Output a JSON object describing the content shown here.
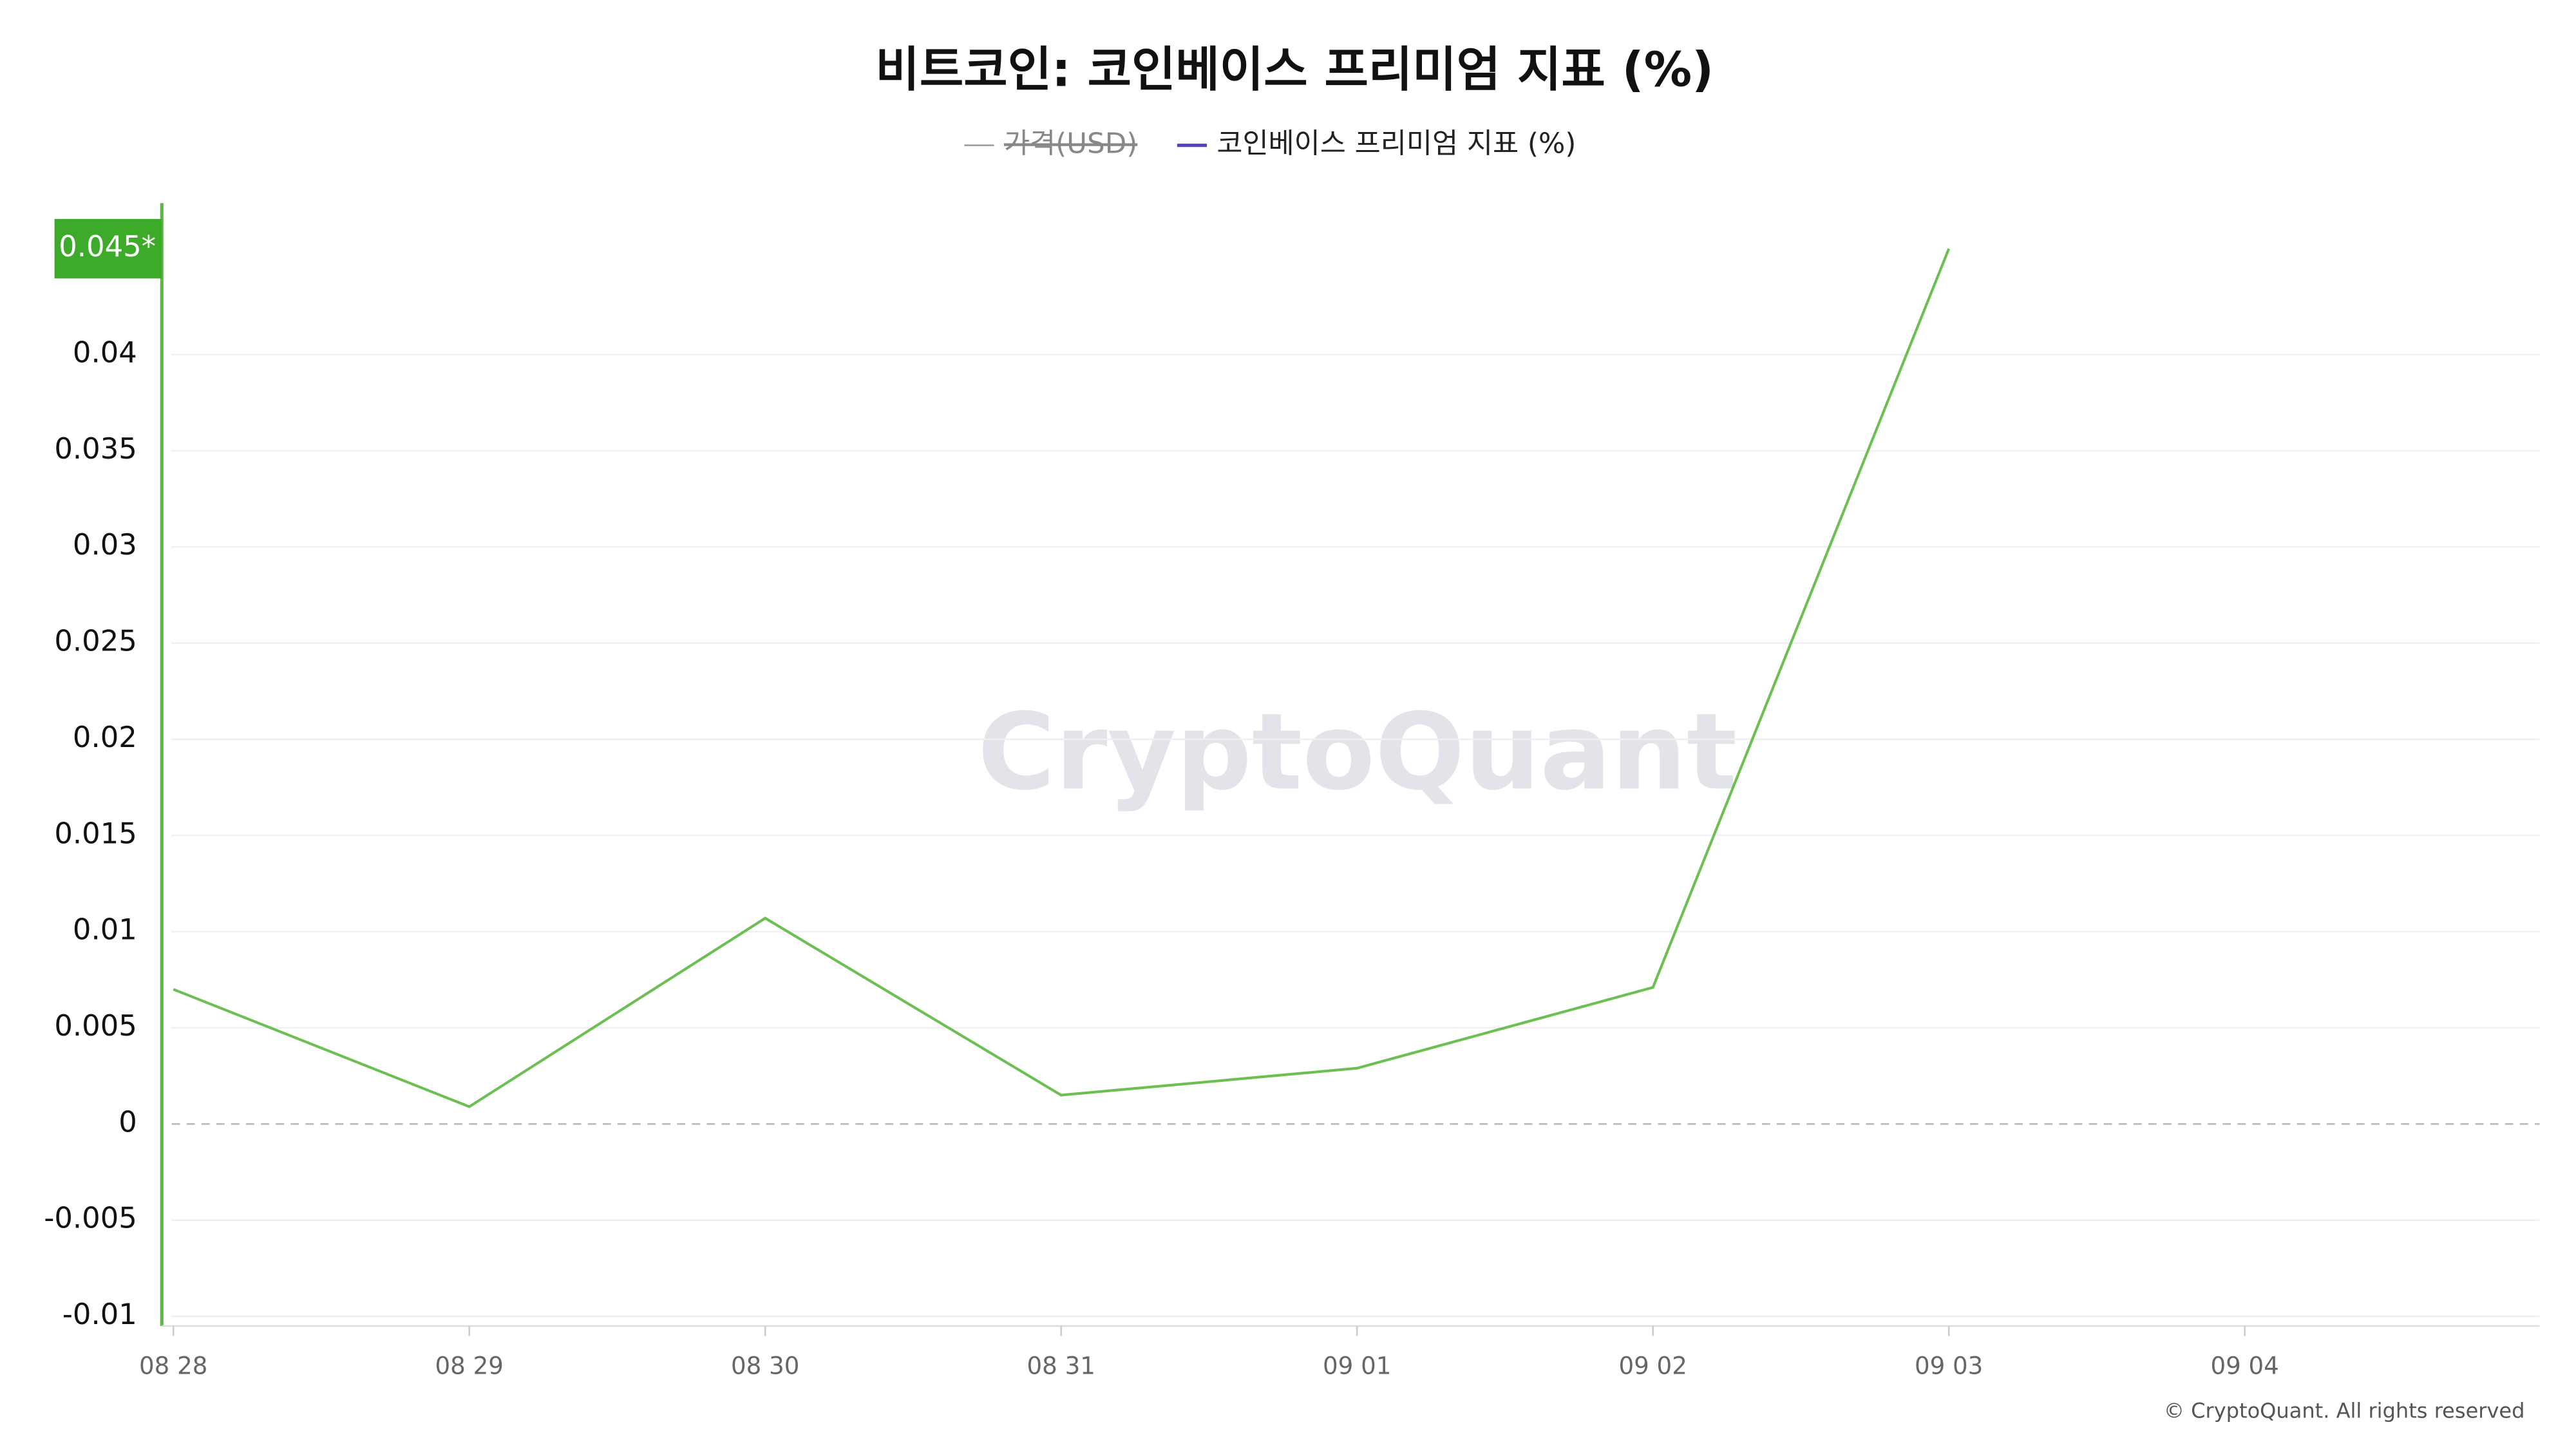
{
  "chart_data": {
    "type": "line",
    "title": "비트코인: 코인베이스 프리미엄 지표 (%)",
    "categories": [
      "08 28",
      "08 29",
      "08 30",
      "08 31",
      "09 01",
      "09 02",
      "09 03",
      "09 04"
    ],
    "series": [
      {
        "name": "가격(USD)",
        "color": "#999999",
        "hidden": true,
        "values": [
          null,
          null,
          null,
          null,
          null,
          null,
          null,
          null
        ]
      },
      {
        "name": "코인베이스 프리미엄 지표 (%)",
        "color": "#5141c8",
        "line_color": "#6cbf52",
        "values": [
          0.007,
          0.0009,
          0.0107,
          0.0015,
          0.0029,
          0.0071,
          0.0455,
          null
        ],
        "value_labels": [
          null,
          null,
          null,
          null,
          null,
          null,
          "0.045*",
          null
        ]
      }
    ],
    "ylim": [
      -0.0105,
      0.0477
    ],
    "yticks": [
      -0.01,
      -0.005,
      0,
      0.005,
      0.01,
      0.015,
      0.02,
      0.025,
      0.03,
      0.035,
      0.04
    ],
    "grid": true,
    "watermark": "CryptoQuant",
    "credit": "© CryptoQuant. All rights reserved"
  }
}
